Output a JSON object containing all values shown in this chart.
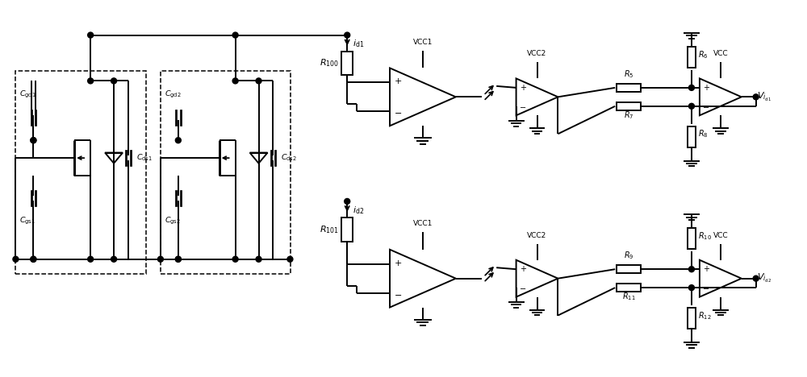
{
  "bg_color": "#ffffff",
  "line_color": "#000000",
  "lw": 1.4,
  "fig_w": 10.0,
  "fig_h": 4.68,
  "xlim": [
    0,
    10
  ],
  "ylim": [
    0,
    4.68
  ]
}
